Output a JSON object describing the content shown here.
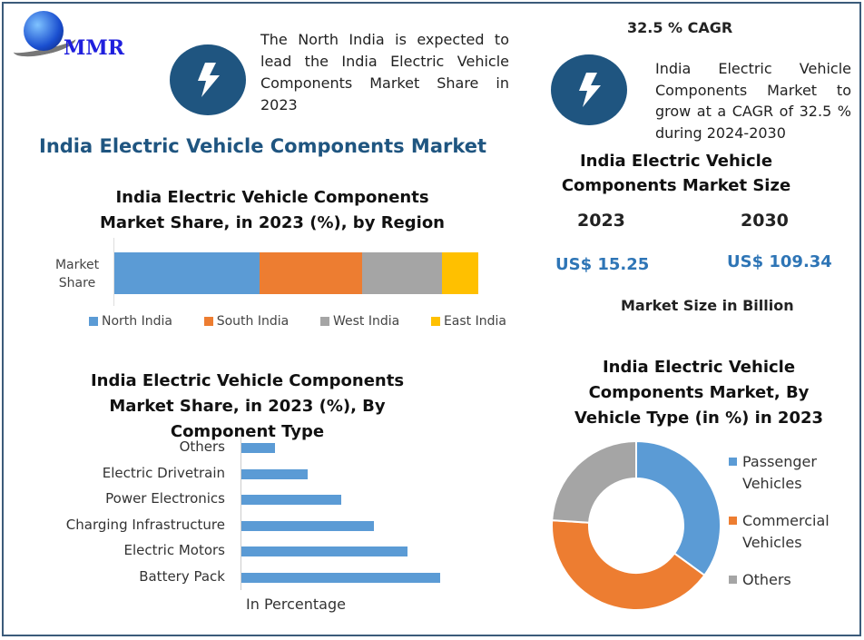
{
  "logo": {
    "text": "MMR"
  },
  "north_note": {
    "icon": "lightning-bolt-icon",
    "text": "The North India is expected to lead the India Electric Vehicle Components Market Share in 2023"
  },
  "cagr": {
    "heading": "32.5 % CAGR",
    "icon": "lightning-bolt-icon",
    "text": "India Electric Vehicle Components Market to grow at a CAGR of 32.5 % during 2024-2030"
  },
  "main_title": "India Electric Vehicle Components Market",
  "market_size": {
    "title": "India Electric Vehicle Components Market Size",
    "years": [
      {
        "year": "2023",
        "value": "US$ 15.25"
      },
      {
        "year": "2030",
        "value": "US$ 109.34"
      }
    ],
    "unit_note": "Market Size in Billion",
    "value_color": "#2e75b6"
  },
  "chart_data": [
    {
      "type": "bar",
      "orientation": "horizontal-stacked",
      "title": "India Electric Vehicle Components Market Share, in 2023 (%), by Region",
      "categories": [
        "Market Share"
      ],
      "series": [
        {
          "name": "North India",
          "values": [
            40
          ],
          "color": "#5b9bd5"
        },
        {
          "name": "South India",
          "values": [
            28
          ],
          "color": "#ed7d31"
        },
        {
          "name": "West India",
          "values": [
            22
          ],
          "color": "#a5a5a5"
        },
        {
          "name": "East India",
          "values": [
            10
          ],
          "color": "#ffc000"
        }
      ],
      "legend": "bottom"
    },
    {
      "type": "bar",
      "orientation": "horizontal",
      "title": "India Electric Vehicle Components Market Share, in 2023 (%), By Component Type",
      "xlabel": "In Percentage",
      "categories": [
        "Others",
        "Electric Drivetrain",
        "Power Electronics",
        "Charging Infrastructure",
        "Electric Motors",
        "Battery Pack"
      ],
      "values": [
        5,
        10,
        15,
        20,
        25,
        30
      ],
      "color": "#5b9bd5"
    },
    {
      "type": "pie",
      "style": "donut",
      "title": "India Electric Vehicle Components Market, By Vehicle Type (in %) in 2023",
      "labels": [
        "Passenger Vehicles",
        "Commercial Vehicles",
        "Others"
      ],
      "values": [
        35,
        41,
        24
      ],
      "colors": [
        "#5b9bd5",
        "#ed7d31",
        "#a5a5a5"
      ],
      "legend": "right"
    }
  ]
}
